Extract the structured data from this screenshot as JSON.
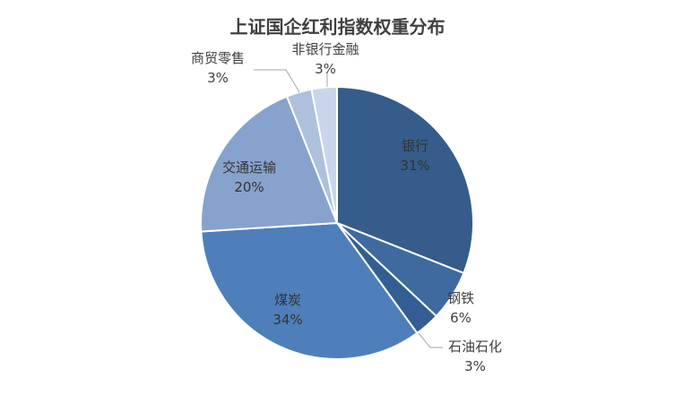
{
  "chart_data": {
    "type": "pie",
    "title": "上证国企红利指数权重分布",
    "categories": [
      "银行",
      "钢铁",
      "石油石化",
      "煤炭",
      "交通运输",
      "商贸零售",
      "非银行金融"
    ],
    "values": [
      31,
      6,
      3,
      34,
      20,
      3,
      3
    ],
    "value_labels": [
      "31%",
      "6%",
      "3%",
      "34%",
      "20%",
      "3%",
      "3%"
    ],
    "colors": [
      "#355C8A",
      "#3F6AA0",
      "#335E94",
      "#4E7FBA",
      "#87A2CC",
      "#AEC0DE",
      "#C9D5EA"
    ],
    "label_color": "#404040",
    "legend": "none",
    "start_angle_deg": 0,
    "direction": "clockwise"
  }
}
